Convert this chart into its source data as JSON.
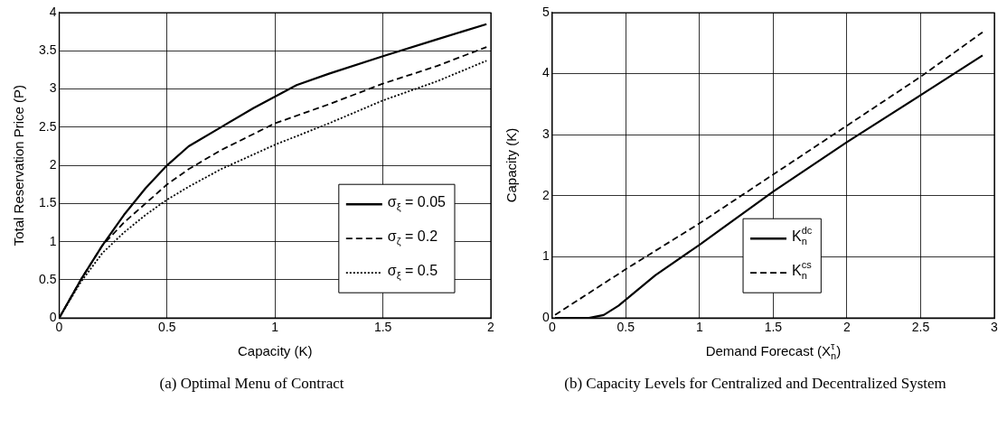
{
  "chart_data": [
    {
      "type": "line",
      "xlabel": "Capacity (K)",
      "ylabel": "Total Reservation Price (P)",
      "xlim": [
        0,
        2
      ],
      "xticks": [
        0,
        0.5,
        1,
        1.5,
        2
      ],
      "ylim": [
        0,
        4
      ],
      "yticks": [
        0,
        0.5,
        1,
        1.5,
        2,
        2.5,
        3,
        3.5,
        4
      ],
      "grid": true,
      "legend": "bottom right",
      "marker": "none",
      "annotations": [
        "(a) Optimal Menu of Contract"
      ],
      "series": [
        {
          "name": "σ$_{ξ}$ = 0.05",
          "color": "#000000",
          "line_style": "solid",
          "x": [
            0,
            0.1,
            0.2,
            0.3,
            0.4,
            0.5,
            0.6,
            0.75,
            0.9,
            1,
            1.1,
            1.25,
            1.5,
            1.75,
            1.98
          ],
          "values": [
            0,
            0.5,
            0.95,
            1.35,
            1.7,
            2.0,
            2.25,
            2.5,
            2.75,
            2.9,
            3.05,
            3.2,
            3.43,
            3.65,
            3.85
          ]
        },
        {
          "name": "σ$_{ζ}$ = 0.2",
          "color": "#000000",
          "line_style": "dashed",
          "x": [
            0,
            0.1,
            0.2,
            0.3,
            0.4,
            0.5,
            0.6,
            0.75,
            1,
            1.25,
            1.5,
            1.75,
            1.98
          ],
          "values": [
            0,
            0.5,
            0.95,
            1.25,
            1.5,
            1.75,
            1.95,
            2.2,
            2.55,
            2.8,
            3.07,
            3.3,
            3.55
          ]
        },
        {
          "name": "σ$_{ξ}$ = 0.5",
          "color": "#000000",
          "line_style": "dotted",
          "x": [
            0,
            0.1,
            0.2,
            0.3,
            0.4,
            0.5,
            0.6,
            0.75,
            1,
            1.25,
            1.5,
            1.75,
            1.98
          ],
          "values": [
            0,
            0.47,
            0.85,
            1.12,
            1.35,
            1.55,
            1.72,
            1.95,
            2.27,
            2.55,
            2.85,
            3.1,
            3.37
          ]
        }
      ]
    },
    {
      "type": "line",
      "xlabel": "Demand Forecast (X$^{τ}$$_{n}$)",
      "ylabel": "Capacity (K)",
      "xlim": [
        0,
        3
      ],
      "xticks": [
        0,
        0.5,
        1,
        1.5,
        2,
        2.5,
        3
      ],
      "ylim": [
        0,
        5
      ],
      "yticks": [
        0,
        1,
        2,
        3,
        4,
        5
      ],
      "grid": true,
      "legend": "bottom",
      "marker": "none",
      "annotations": [
        "(b) Capacity Levels for Centralized and Decentralized System"
      ],
      "series": [
        {
          "name": "K$^{dc}$$_{n}$",
          "color": "#000000",
          "line_style": "solid",
          "x": [
            0.02,
            0.25,
            0.35,
            0.45,
            0.55,
            0.7,
            1,
            1.5,
            2,
            2.5,
            2.92
          ],
          "values": [
            0,
            0,
            0.05,
            0.2,
            0.4,
            0.7,
            1.2,
            2.07,
            2.88,
            3.65,
            4.3
          ]
        },
        {
          "name": "K$^{cs}$$_{n}$",
          "color": "#000000",
          "line_style": "dashed",
          "x": [
            0.02,
            0.5,
            1,
            1.5,
            2,
            2.5,
            2.92
          ],
          "values": [
            0.05,
            0.8,
            1.55,
            2.35,
            3.15,
            3.95,
            4.68
          ]
        }
      ]
    }
  ]
}
